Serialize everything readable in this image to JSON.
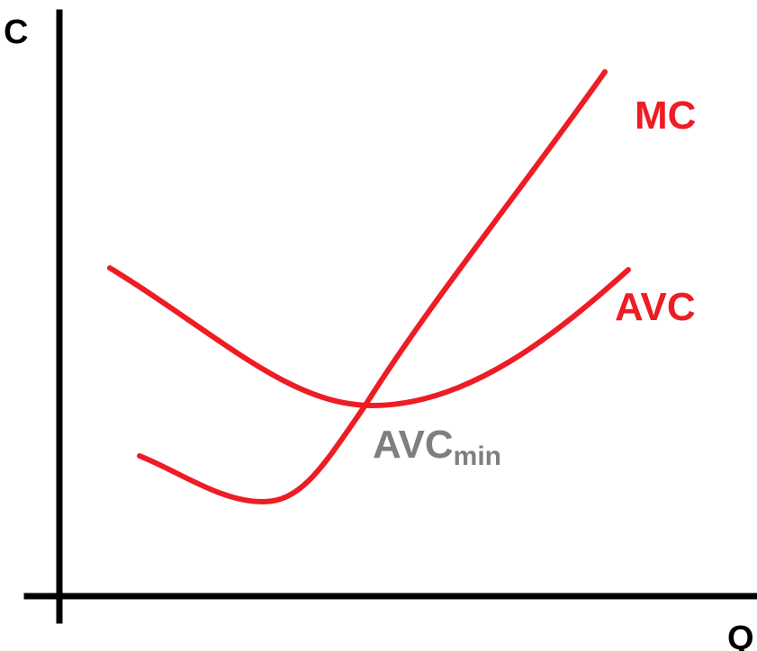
{
  "colors": {
    "axis": "#000000",
    "curve": "#ee1c24",
    "point_label": "#7f7f7f"
  },
  "axes": {
    "y_label": "C",
    "x_label": "Q"
  },
  "curves": {
    "mc": {
      "label": "MC"
    },
    "avc": {
      "label": "AVC"
    }
  },
  "point": {
    "label_main": "AVC",
    "label_sub": "min"
  }
}
